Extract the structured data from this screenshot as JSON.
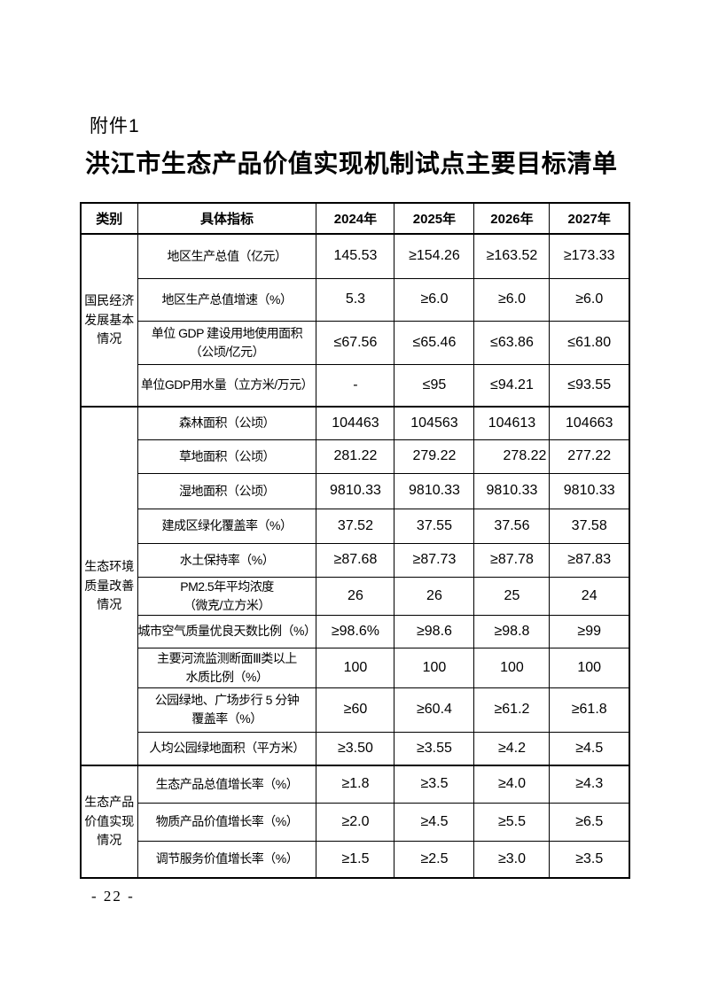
{
  "attachment_label": "附件1",
  "title": "洪江市生态产品价值实现机制试点主要目标清单",
  "page_number": "- 22 -",
  "table": {
    "headers": [
      "类别",
      "具体指标",
      "2024年",
      "2025年",
      "2026年",
      "2027年"
    ],
    "sections": [
      {
        "category": "国民经济发展基本情况",
        "rows": [
          {
            "indicator": "地区生产总值（亿元）",
            "values": [
              "145.53",
              "≥154.26",
              "≥163.52",
              "≥173.33"
            ]
          },
          {
            "indicator": "地区生产总值增速（%）",
            "values": [
              "5.3",
              "≥6.0",
              "≥6.0",
              "≥6.0"
            ]
          },
          {
            "indicator": "单位 GDP 建设用地使用面积\n（公顷/亿元）",
            "values": [
              "≤67.56",
              "≤65.46",
              "≤63.86",
              "≤61.80"
            ]
          },
          {
            "indicator": "单位GDP用水量（立方米/万元）",
            "values": [
              "-",
              "≤95",
              "≤94.21",
              "≤93.55"
            ]
          }
        ]
      },
      {
        "category": "生态环境质量改善情况",
        "rows": [
          {
            "indicator": "森林面积（公顷）",
            "values": [
              "104463",
              "104563",
              "104613",
              "104663"
            ]
          },
          {
            "indicator": "草地面积（公顷）",
            "values": [
              "281.22",
              "279.22",
              "278.22",
              "277.22"
            ],
            "aligns": [
              "center",
              "center",
              "right",
              "center"
            ]
          },
          {
            "indicator": "湿地面积（公顷）",
            "values": [
              "9810.33",
              "9810.33",
              "9810.33",
              "9810.33"
            ]
          },
          {
            "indicator": "建成区绿化覆盖率（%）",
            "values": [
              "37.52",
              "37.55",
              "37.56",
              "37.58"
            ]
          },
          {
            "indicator": "水土保持率（%）",
            "values": [
              "≥87.68",
              "≥87.73",
              "≥87.78",
              "≥87.83"
            ]
          },
          {
            "indicator": "PM2.5年平均浓度\n（微克/立方米）",
            "values": [
              "26",
              "26",
              "25",
              "24"
            ]
          },
          {
            "indicator": "城市空气质量优良天数比例（%）",
            "values": [
              "≥98.6%",
              "≥98.6",
              "≥98.8",
              "≥99"
            ]
          },
          {
            "indicator": "主要河流监测断面Ⅲ类以上\n水质比例（%）",
            "values": [
              "100",
              "100",
              "100",
              "100"
            ]
          },
          {
            "indicator": "公园绿地、广场步行 5 分钟\n覆盖率（%）",
            "values": [
              "≥60",
              "≥60.4",
              "≥61.2",
              "≥61.8"
            ]
          },
          {
            "indicator": "人均公园绿地面积（平方米）",
            "values": [
              "≥3.50",
              "≥3.55",
              "≥4.2",
              "≥4.5"
            ]
          }
        ]
      },
      {
        "category": "生态产品价值实现情况",
        "rows": [
          {
            "indicator": "生态产品总值增长率（%）",
            "values": [
              "≥1.8",
              "≥3.5",
              "≥4.0",
              "≥4.3"
            ]
          },
          {
            "indicator": "物质产品价值增长率（%）",
            "values": [
              "≥2.0",
              "≥4.5",
              "≥5.5",
              "≥6.5"
            ]
          },
          {
            "indicator": "调节服务价值增长率（%）",
            "values": [
              "≥1.5",
              "≥2.5",
              "≥3.0",
              "≥3.5"
            ]
          }
        ]
      }
    ]
  }
}
